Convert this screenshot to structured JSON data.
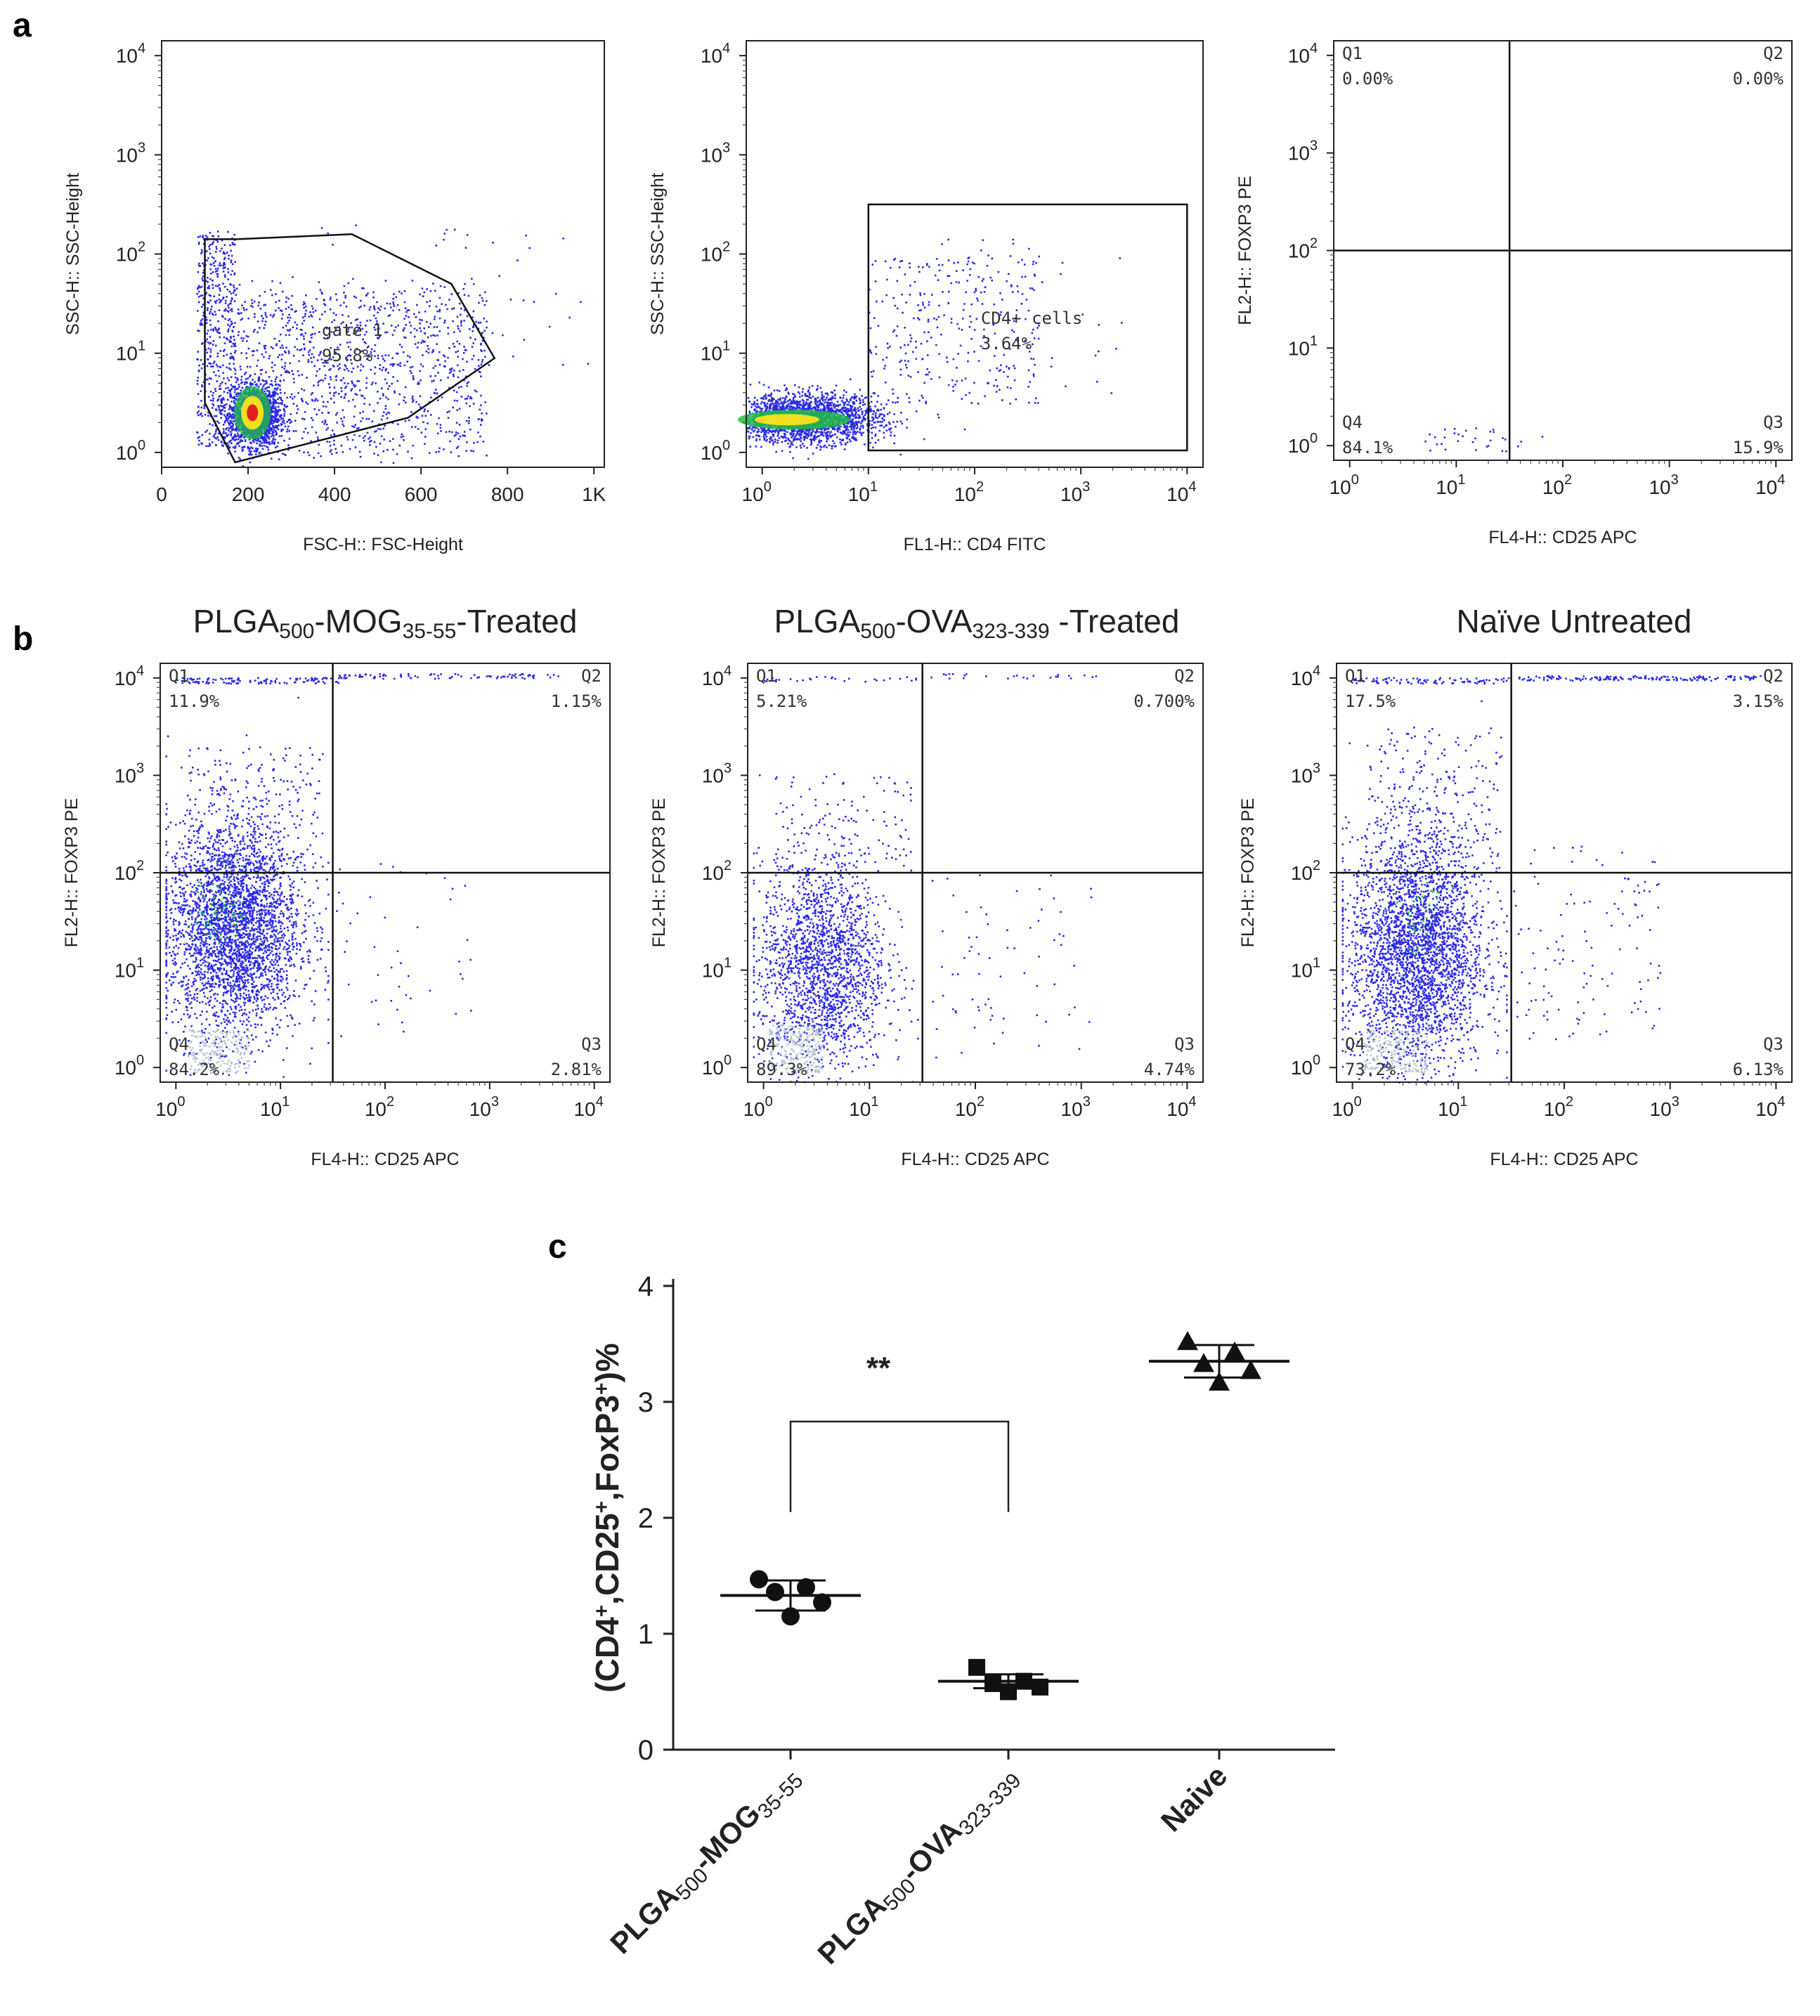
{
  "panel_letters": {
    "a": "a",
    "b": "b",
    "c": "c"
  },
  "scatter_ticks": {
    "log": [
      {
        "base": "10",
        "exp": "0",
        "v": 0
      },
      {
        "base": "10",
        "exp": "1",
        "v": 1
      },
      {
        "base": "10",
        "exp": "2",
        "v": 2
      },
      {
        "base": "10",
        "exp": "3",
        "v": 3
      },
      {
        "base": "10",
        "exp": "4",
        "v": 4
      }
    ],
    "linear": [
      {
        "label": "0",
        "v": 0
      },
      {
        "label": "200",
        "v": 200
      },
      {
        "label": "400",
        "v": 400
      },
      {
        "label": "600",
        "v": 600
      },
      {
        "label": "800",
        "v": 800
      },
      {
        "label": "1K",
        "v": 1000
      }
    ]
  },
  "panel_a": {
    "plot1": {
      "xlabel": "FSC-H:: FSC-Height",
      "ylabel": "SSC-H:: SSC-Height",
      "xrange": [
        0,
        1024
      ],
      "yrange": [
        -0.15,
        4.15
      ],
      "gate": {
        "name": "gate 1",
        "pct": "95.8%",
        "vertices": [
          [
            100,
            2.15
          ],
          [
            175,
            2.15
          ],
          [
            440,
            2.2
          ],
          [
            670,
            1.7
          ],
          [
            770,
            0.95
          ],
          [
            570,
            0.35
          ],
          [
            170,
            -0.1
          ],
          [
            100,
            0.5
          ]
        ]
      }
    },
    "plot2": {
      "xlabel": "FL1-H:: CD4 FITC",
      "ylabel": "SSC-H:: SSC-Height",
      "xrange": [
        -0.15,
        4.15
      ],
      "yrange": [
        -0.15,
        4.15
      ],
      "gate": {
        "name": "CD4+ cells",
        "pct": "3.64%",
        "x": [
          1.0,
          4.0
        ],
        "y": [
          0.02,
          2.5
        ]
      }
    },
    "plot3": {
      "xlabel": "FL4-H:: CD25 APC",
      "ylabel": "FL2-H:: FOXP3 PE",
      "xrange": [
        -0.15,
        4.15
      ],
      "yrange": [
        -0.15,
        4.15
      ],
      "quad_x": 1.5,
      "quad_y": 2.0,
      "quadrants": {
        "q1": {
          "name": "Q1",
          "pct": "0.00%"
        },
        "q2": {
          "name": "Q2",
          "pct": "0.00%"
        },
        "q3": {
          "name": "Q3",
          "pct": "15.9%"
        },
        "q4": {
          "name": "Q4",
          "pct": "84.1%"
        }
      }
    }
  },
  "panel_b": [
    {
      "title_parts": [
        "PLGA",
        "500",
        "-MOG",
        "35-55",
        "-Treated"
      ],
      "xlabel": "FL4-H:: CD25 APC",
      "ylabel": "FL2-H:: FOXP3 PE",
      "quad_x": 1.5,
      "quad_y": 2.0,
      "quadrants": {
        "q1": {
          "name": "Q1",
          "pct": "11.9%"
        },
        "q2": {
          "name": "Q2",
          "pct": "1.15%"
        },
        "q3": {
          "name": "Q3",
          "pct": "2.81%"
        },
        "q4": {
          "name": "Q4",
          "pct": "84.2%"
        }
      }
    },
    {
      "title_parts": [
        "PLGA",
        "500",
        "-OVA",
        "323-339",
        " -Treated"
      ],
      "xlabel": "FL4-H:: CD25 APC",
      "ylabel": "FL2-H:: FOXP3 PE",
      "quad_x": 1.5,
      "quad_y": 2.0,
      "quadrants": {
        "q1": {
          "name": "Q1",
          "pct": "5.21%"
        },
        "q2": {
          "name": "Q2",
          "pct": "0.700%"
        },
        "q3": {
          "name": "Q3",
          "pct": "4.74%"
        },
        "q4": {
          "name": "Q4",
          "pct": "89.3%"
        }
      }
    },
    {
      "title_parts": [
        "Naïve Untreated",
        "",
        "",
        "",
        ""
      ],
      "xlabel": "FL4-H:: CD25 APC",
      "ylabel": "FL2-H:: FOXP3 PE",
      "quad_x": 1.5,
      "quad_y": 2.0,
      "quadrants": {
        "q1": {
          "name": "Q1",
          "pct": "17.5%"
        },
        "q2": {
          "name": "Q2",
          "pct": "3.15%"
        },
        "q3": {
          "name": "Q3",
          "pct": "6.13%"
        },
        "q4": {
          "name": "Q4",
          "pct": "73.2%"
        }
      }
    }
  ],
  "chart_data": {
    "type": "scatter",
    "title": "",
    "ylabel_parts": [
      "(CD4",
      "+",
      ",CD25",
      "+",
      ",FoxP3",
      "+",
      ")%"
    ],
    "ylim": [
      0,
      4
    ],
    "yticks": [
      0,
      1,
      2,
      3,
      4
    ],
    "categories": [
      {
        "parts": [
          "PLGA",
          "500",
          "-MOG",
          "35-55"
        ]
      },
      {
        "parts": [
          "PLGA",
          "500",
          "-OVA",
          "323-339"
        ]
      },
      {
        "parts": [
          "Naive",
          "",
          "",
          ""
        ]
      }
    ],
    "series": [
      {
        "name": "PLGA500-MOG35-55",
        "marker": "circle",
        "mean": 1.33,
        "sd": 0.13,
        "points": [
          1.47,
          1.4,
          1.36,
          1.27,
          1.15
        ]
      },
      {
        "name": "PLGA500-OVA323-339",
        "marker": "square",
        "mean": 0.59,
        "sd": 0.06,
        "points": [
          0.71,
          0.59,
          0.57,
          0.54,
          0.5
        ]
      },
      {
        "name": "Naive",
        "marker": "triangle",
        "mean": 3.35,
        "sd": 0.14,
        "points": [
          3.52,
          3.43,
          3.33,
          3.27,
          3.17
        ]
      }
    ],
    "significance": {
      "from": 0,
      "to": 1,
      "label": "**",
      "y": 2.83,
      "drop_to": 2.05
    }
  },
  "colors": {
    "dots": "#2a2ae6",
    "hot_green": "#22c040",
    "hot_yellow": "#f0e020",
    "hot_red": "#e02020",
    "axis": "#222222"
  }
}
